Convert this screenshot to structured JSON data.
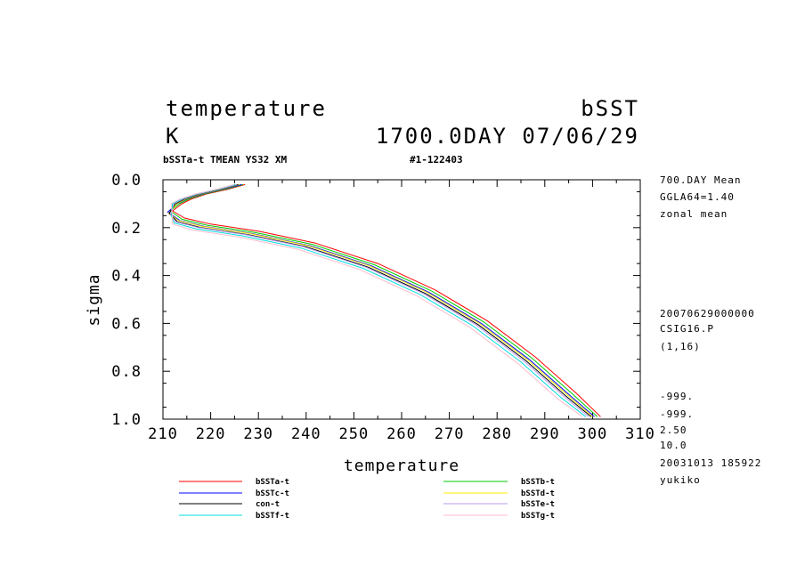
{
  "header": {
    "title_left": "temperature",
    "title_right": "bSST",
    "unit": "K",
    "time_label": "1700.0DAY 07/06/29",
    "subtitle_left": "bSSTa-t TMEAN YS32 XM",
    "subtitle_right": "#1-122403"
  },
  "side_info": {
    "top": [
      "700.DAY Mean",
      "GGLA64=1.40",
      "zonal mean"
    ],
    "middle": [
      "20070629000000",
      "CSIG16.P",
      "(1,16)"
    ],
    "bottom": [
      "-999.",
      "-999.",
      "2.50",
      "10.0",
      "20031013 185922",
      "yukiko"
    ]
  },
  "chart_data": {
    "type": "line",
    "title": "temperature",
    "xlabel": "temperature",
    "ylabel": "sigma",
    "xlim": [
      210,
      310
    ],
    "ylim": [
      0.0,
      1.0
    ],
    "y_inverted": true,
    "x_ticks": [
      210,
      220,
      230,
      240,
      250,
      260,
      270,
      280,
      290,
      300,
      310
    ],
    "y_ticks": [
      0.0,
      0.2,
      0.4,
      0.6,
      0.8,
      1.0
    ],
    "x_tick_labels": [
      "210",
      "220",
      "230",
      "240",
      "250",
      "260",
      "270",
      "280",
      "290",
      "300",
      "310"
    ],
    "y_tick_labels": [
      "0.0",
      "0.2",
      "0.4",
      "0.6",
      "0.8",
      "1.0"
    ],
    "grid": false,
    "legend_position": "bottom",
    "series": [
      {
        "name": "bSSTa-t",
        "color": "#ff0000",
        "offset": 2.0,
        "points": [
          [
            227.2,
            0.02
          ],
          [
            223.5,
            0.04
          ],
          [
            219.0,
            0.06
          ],
          [
            216.0,
            0.08
          ],
          [
            214.0,
            0.1
          ],
          [
            212.0,
            0.13
          ],
          [
            214.5,
            0.16
          ],
          [
            220.0,
            0.185
          ],
          [
            230.0,
            0.215
          ],
          [
            242.0,
            0.265
          ],
          [
            255.0,
            0.35
          ],
          [
            267.0,
            0.46
          ],
          [
            278.0,
            0.59
          ],
          [
            288.0,
            0.74
          ],
          [
            296.5,
            0.89
          ],
          [
            301.7,
            0.99
          ]
        ]
      },
      {
        "name": "bSSTb-t",
        "color": "#00cc00",
        "offset": 1.3,
        "points": [
          [
            226.8,
            0.02
          ],
          [
            223.0,
            0.04
          ],
          [
            218.6,
            0.06
          ],
          [
            215.5,
            0.08
          ],
          [
            213.5,
            0.1
          ],
          [
            211.5,
            0.13
          ],
          [
            214.0,
            0.165
          ],
          [
            219.3,
            0.19
          ],
          [
            229.3,
            0.22
          ],
          [
            241.3,
            0.27
          ],
          [
            254.3,
            0.355
          ],
          [
            266.3,
            0.465
          ],
          [
            277.3,
            0.595
          ],
          [
            287.3,
            0.745
          ],
          [
            295.8,
            0.895
          ],
          [
            301.0,
            0.99
          ]
        ]
      },
      {
        "name": "bSSTc-t",
        "color": "#0000ff",
        "offset": 0.7,
        "points": [
          [
            226.5,
            0.02
          ],
          [
            222.6,
            0.04
          ],
          [
            218.2,
            0.06
          ],
          [
            215.1,
            0.08
          ],
          [
            213.0,
            0.1
          ],
          [
            211.0,
            0.135
          ],
          [
            213.5,
            0.17
          ],
          [
            218.7,
            0.195
          ],
          [
            228.7,
            0.225
          ],
          [
            240.7,
            0.275
          ],
          [
            253.7,
            0.36
          ],
          [
            265.7,
            0.47
          ],
          [
            276.7,
            0.6
          ],
          [
            286.7,
            0.75
          ],
          [
            295.2,
            0.9
          ],
          [
            300.4,
            0.99
          ]
        ]
      },
      {
        "name": "bSSTd-t",
        "color": "#ffee00",
        "offset": 0.3,
        "points": [
          [
            226.0,
            0.02
          ],
          [
            222.3,
            0.04
          ],
          [
            217.9,
            0.06
          ],
          [
            214.9,
            0.08
          ],
          [
            212.9,
            0.1
          ],
          [
            211.2,
            0.14
          ],
          [
            213.2,
            0.17
          ],
          [
            218.3,
            0.195
          ],
          [
            228.3,
            0.225
          ],
          [
            240.3,
            0.275
          ],
          [
            253.3,
            0.36
          ],
          [
            265.3,
            0.47
          ],
          [
            276.3,
            0.6
          ],
          [
            286.3,
            0.75
          ],
          [
            294.8,
            0.9
          ],
          [
            300.0,
            0.99
          ]
        ]
      },
      {
        "name": "con-t",
        "color": "#000000",
        "offset": 0.0,
        "points": [
          [
            225.8,
            0.02
          ],
          [
            222.0,
            0.04
          ],
          [
            217.6,
            0.06
          ],
          [
            214.6,
            0.08
          ],
          [
            212.6,
            0.1
          ],
          [
            211.3,
            0.14
          ],
          [
            213.0,
            0.175
          ],
          [
            218.0,
            0.2
          ],
          [
            228.0,
            0.23
          ],
          [
            240.0,
            0.28
          ],
          [
            253.0,
            0.365
          ],
          [
            265.0,
            0.475
          ],
          [
            276.0,
            0.605
          ],
          [
            286.0,
            0.755
          ],
          [
            294.5,
            0.905
          ],
          [
            299.7,
            0.99
          ]
        ]
      },
      {
        "name": "bSSTe-t",
        "color": "#bb99ee",
        "offset": -0.5,
        "points": [
          [
            225.5,
            0.02
          ],
          [
            221.7,
            0.04
          ],
          [
            217.3,
            0.06
          ],
          [
            214.3,
            0.08
          ],
          [
            212.3,
            0.1
          ],
          [
            211.6,
            0.145
          ],
          [
            212.6,
            0.175
          ],
          [
            217.5,
            0.2
          ],
          [
            227.5,
            0.23
          ],
          [
            239.5,
            0.28
          ],
          [
            252.5,
            0.365
          ],
          [
            264.5,
            0.475
          ],
          [
            275.5,
            0.605
          ],
          [
            285.5,
            0.755
          ],
          [
            294.0,
            0.905
          ],
          [
            299.2,
            0.99
          ]
        ]
      },
      {
        "name": "bSSTf-t",
        "color": "#00dddd",
        "offset": -0.9,
        "points": [
          [
            225.2,
            0.02
          ],
          [
            221.4,
            0.04
          ],
          [
            217.0,
            0.06
          ],
          [
            214.0,
            0.08
          ],
          [
            212.0,
            0.1
          ],
          [
            211.8,
            0.15
          ],
          [
            212.3,
            0.18
          ],
          [
            216.9,
            0.205
          ],
          [
            226.9,
            0.235
          ],
          [
            238.9,
            0.285
          ],
          [
            251.9,
            0.37
          ],
          [
            263.9,
            0.48
          ],
          [
            274.9,
            0.61
          ],
          [
            284.9,
            0.76
          ],
          [
            293.4,
            0.91
          ],
          [
            298.6,
            0.99
          ]
        ]
      },
      {
        "name": "bSSTg-t",
        "color": "#ffbbcc",
        "offset": -1.6,
        "points": [
          [
            224.9,
            0.02
          ],
          [
            221.1,
            0.04
          ],
          [
            216.7,
            0.06
          ],
          [
            213.7,
            0.08
          ],
          [
            211.7,
            0.1
          ],
          [
            212.0,
            0.155
          ],
          [
            212.0,
            0.185
          ],
          [
            216.2,
            0.21
          ],
          [
            226.2,
            0.24
          ],
          [
            238.2,
            0.29
          ],
          [
            251.2,
            0.375
          ],
          [
            263.2,
            0.485
          ],
          [
            274.2,
            0.615
          ],
          [
            284.2,
            0.765
          ],
          [
            292.7,
            0.915
          ],
          [
            297.9,
            0.99
          ]
        ]
      }
    ]
  }
}
